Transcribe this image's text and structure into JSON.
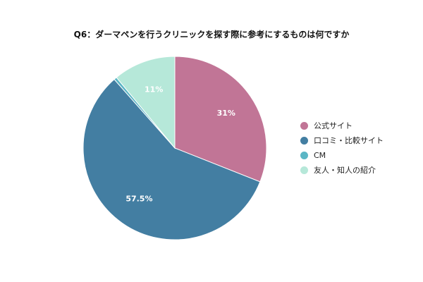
{
  "chart_data": {
    "type": "pie",
    "title": "Q6：ダーマペンを行うクリニックを探す際に参考にするものは何ですか",
    "categories": [
      "公式サイト",
      "口コミ・比較サイト",
      "CM",
      "友人・知人の紹介"
    ],
    "values": [
      31,
      57.5,
      0.5,
      11
    ],
    "data_labels": [
      "31%",
      "57.5%",
      "",
      "11%"
    ],
    "colors": [
      "#c17596",
      "#437ea2",
      "#5bb6c5",
      "#b6e8d9"
    ],
    "legend_position": "right"
  }
}
